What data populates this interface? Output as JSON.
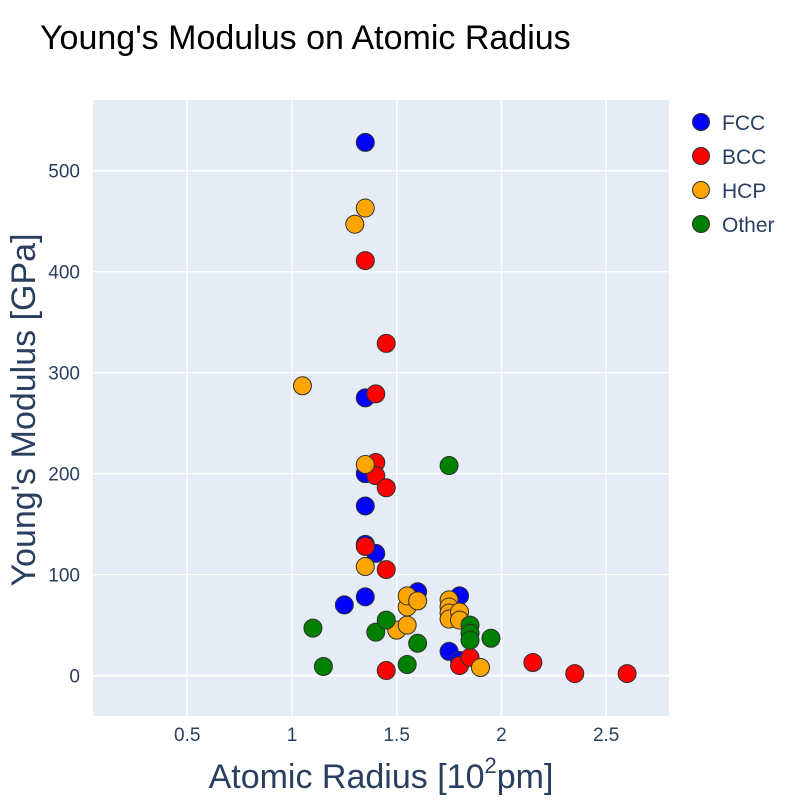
{
  "chart_data": {
    "type": "scatter",
    "title": "Young's Modulus on Atomic Radius",
    "xlabel_main": "Atomic Radius [10",
    "xlabel_sup": "2",
    "xlabel_tail": "pm]",
    "ylabel": "Young's Modulus [GPa]",
    "xlim": [
      0.05,
      2.8
    ],
    "ylim": [
      -40,
      570
    ],
    "xticks": [
      0.5,
      1,
      1.5,
      2,
      2.5
    ],
    "xtick_labels": [
      "0.5",
      "1",
      "1.5",
      "2",
      "2.5"
    ],
    "yticks": [
      0,
      100,
      200,
      300,
      400,
      500
    ],
    "ytick_labels": [
      "0",
      "100",
      "200",
      "300",
      "400",
      "500"
    ],
    "grid": true,
    "legend_position": "right",
    "plot_bgcolor": "#e5ecf6",
    "series": [
      {
        "name": "FCC",
        "color": "#0000ff",
        "x": [
          1.35,
          1.35,
          1.35,
          1.35,
          1.35,
          1.4,
          1.35,
          1.25,
          1.6,
          1.8,
          1.75,
          1.8
        ],
        "y": [
          528,
          275,
          200,
          168,
          130,
          121,
          78,
          70,
          83,
          79,
          24,
          15
        ]
      },
      {
        "name": "BCC",
        "color": "#ff0000",
        "x": [
          1.35,
          1.45,
          1.4,
          1.4,
          1.4,
          1.45,
          1.35,
          1.45,
          1.45,
          1.8,
          1.85,
          2.15,
          2.35,
          2.6
        ],
        "y": [
          411,
          329,
          279,
          211,
          198,
          186,
          128,
          105,
          5,
          10,
          18,
          13,
          2,
          2
        ]
      },
      {
        "name": "HCP",
        "color": "#ffa500",
        "x": [
          1.35,
          1.3,
          1.05,
          1.35,
          1.35,
          1.5,
          1.55,
          1.55,
          1.55,
          1.6,
          1.75,
          1.75,
          1.75,
          1.75,
          1.8,
          1.8,
          1.9
        ],
        "y": [
          463,
          447,
          287,
          209,
          108,
          45,
          50,
          68,
          79,
          74,
          75,
          68,
          62,
          56,
          63,
          55,
          8
        ]
      },
      {
        "name": "Other",
        "color": "#008000",
        "x": [
          1.75,
          1.1,
          1.4,
          1.45,
          1.6,
          1.55,
          1.15,
          1.85,
          1.85,
          1.85,
          1.95
        ],
        "y": [
          208,
          47,
          43,
          55,
          32,
          11,
          9,
          50,
          42,
          35,
          37
        ]
      }
    ]
  }
}
